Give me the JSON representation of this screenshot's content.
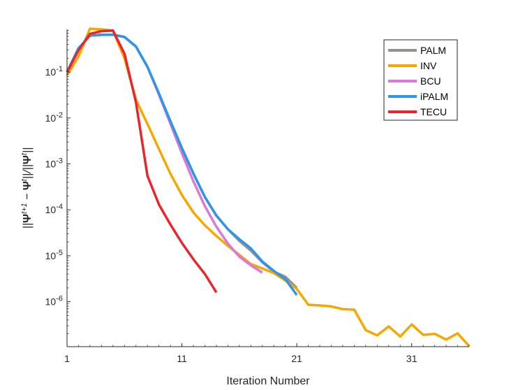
{
  "chart_data": {
    "type": "line",
    "title": "",
    "xlabel": "Iteration Number",
    "ylabel": "||Ψ^{t+1} − Ψ^t|| / ||Ψ^t||",
    "yscale": "log",
    "xlim": [
      1,
      36
    ],
    "ylim": [
      1.05e-07,
      0.85
    ],
    "x_ticks": [
      1,
      11,
      21,
      31
    ],
    "x_tick_labels": [
      "1",
      "11",
      "21",
      "31"
    ],
    "y_ticks": [
      1e-06,
      1e-05,
      0.0001,
      0.001,
      0.01,
      0.1
    ],
    "y_tick_labels": [
      {
        "base": "10",
        "exp": "-6"
      },
      {
        "base": "10",
        "exp": "-5"
      },
      {
        "base": "10",
        "exp": "-4"
      },
      {
        "base": "10",
        "exp": "-3"
      },
      {
        "base": "10",
        "exp": "-2"
      },
      {
        "base": "10",
        "exp": "-1"
      }
    ],
    "grid": false,
    "legend_position": "top-right",
    "series": [
      {
        "name": "PALM",
        "color": "#929292",
        "x": [
          1,
          2,
          3,
          4,
          5,
          6,
          7,
          8,
          9,
          10,
          11,
          12,
          13,
          14,
          15,
          16,
          17,
          18,
          19,
          20,
          21
        ],
        "y": [
          0.1,
          0.33,
          0.62,
          0.65,
          0.65,
          0.58,
          0.36,
          0.13,
          0.034,
          0.0085,
          0.0022,
          0.00062,
          0.00019,
          7.5e-05,
          3.8e-05,
          2.1e-05,
          1.3e-05,
          7.2e-06,
          4.5e-06,
          3.5e-06,
          2e-06
        ]
      },
      {
        "name": "INV",
        "color": "#f5a800",
        "x": [
          1,
          2,
          3,
          4,
          5,
          6,
          7,
          8,
          9,
          10,
          11,
          12,
          13,
          14,
          15,
          16,
          17,
          18,
          19,
          20,
          21,
          22,
          23,
          24,
          25,
          26,
          27,
          28,
          29,
          30,
          31,
          32,
          33,
          34,
          35,
          36
        ],
        "y": [
          0.085,
          0.22,
          0.88,
          0.85,
          0.8,
          0.2,
          0.025,
          0.0074,
          0.0021,
          0.00061,
          0.00021,
          8.8e-05,
          4.6e-05,
          2.7e-05,
          1.65e-05,
          1.05e-05,
          6.6e-06,
          5.3e-06,
          4.2e-06,
          2.9e-06,
          1.9e-06,
          8.6e-07,
          8.3e-07,
          7.9e-07,
          6.9e-07,
          6.7e-07,
          2.4e-07,
          1.85e-07,
          2.9e-07,
          1.75e-07,
          3.2e-07,
          1.9e-07,
          2e-07,
          1.5e-07,
          2.05e-07,
          1.08e-07
        ]
      },
      {
        "name": "BCU",
        "color": "#d97ad9",
        "x": [
          1,
          2,
          3,
          4,
          5,
          6,
          7,
          8,
          9,
          10,
          11,
          12,
          13,
          14,
          15,
          16,
          17,
          18
        ],
        "y": [
          0.1,
          0.33,
          0.62,
          0.65,
          0.65,
          0.58,
          0.36,
          0.13,
          0.032,
          0.0075,
          0.0017,
          0.00042,
          0.00012,
          4.3e-05,
          1.85e-05,
          9.5e-06,
          6.2e-06,
          4.3e-06
        ]
      },
      {
        "name": "iPALM",
        "color": "#2d96ea",
        "x": [
          1,
          2,
          3,
          4,
          5,
          6,
          7,
          8,
          9,
          10,
          11,
          12,
          13,
          14,
          15,
          16,
          17,
          18,
          19,
          20,
          21
        ],
        "y": [
          0.1,
          0.33,
          0.62,
          0.65,
          0.65,
          0.58,
          0.36,
          0.13,
          0.034,
          0.0085,
          0.0022,
          0.00062,
          0.00019,
          7.5e-05,
          3.8e-05,
          2.3e-05,
          1.45e-05,
          7.5e-06,
          4.7e-06,
          3.1e-06,
          1.4e-06
        ]
      },
      {
        "name": "TECU",
        "color": "#e8272d",
        "x": [
          1,
          2,
          3,
          4,
          5,
          6,
          7,
          8,
          9,
          10,
          11,
          12,
          13,
          14
        ],
        "y": [
          0.1,
          0.3,
          0.68,
          0.78,
          0.8,
          0.25,
          0.022,
          0.00055,
          0.00013,
          4.8e-05,
          1.9e-05,
          8.4e-06,
          4e-06,
          1.6e-06
        ]
      }
    ]
  }
}
